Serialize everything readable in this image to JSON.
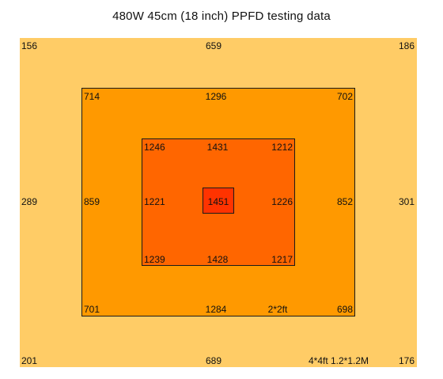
{
  "title": "480W 45cm (18 inch) PPFD testing data",
  "colors": {
    "outer_zone": "#FFCC66",
    "middle_zone": "#FF9900",
    "inner_zone": "#FF6600",
    "center_zone": "#FF3300",
    "border": "#1a1a1a"
  },
  "outer": {
    "top_left": "156",
    "top_center": "659",
    "top_right": "186",
    "mid_left": "289",
    "mid_right": "301",
    "bottom_left": "201",
    "bottom_center": "689",
    "bottom_right": "176",
    "size_label": "4*4ft  1.2*1.2M"
  },
  "middle": {
    "top_left": "714",
    "top_center": "1296",
    "top_right": "702",
    "mid_left": "859",
    "mid_right": "852",
    "bottom_left": "701",
    "bottom_center": "1284",
    "bottom_right": "698",
    "size_label": "2*2ft"
  },
  "inner": {
    "top_left": "1246",
    "top_center": "1431",
    "top_right": "1212",
    "mid_left": "1221",
    "mid_right": "1226",
    "bottom_left": "1239",
    "bottom_center": "1428",
    "bottom_right": "1217"
  },
  "center": {
    "value": "1451"
  }
}
